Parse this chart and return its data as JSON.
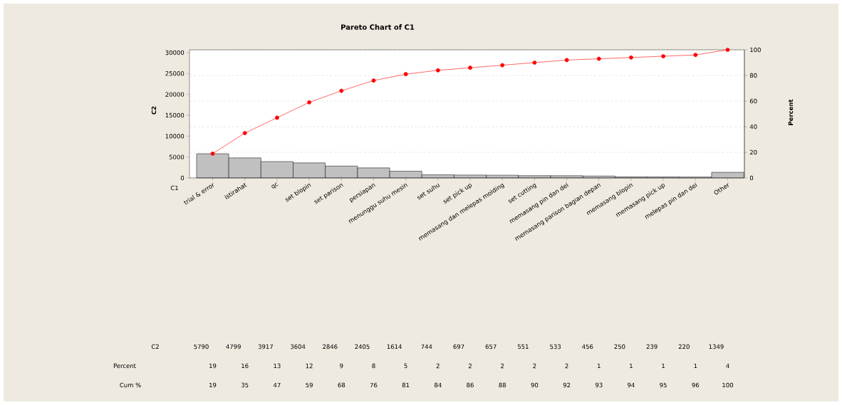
{
  "chart_data": {
    "type": "bar",
    "title": "Pareto Chart of C1",
    "xlabel": "C1",
    "ylabel": "C2",
    "y2label": "Percent",
    "categories": [
      "trial & error",
      "istirahat",
      "qc",
      "set blopin",
      "set parison",
      "persiapan",
      "menunggu suhu mesin",
      "set suhu",
      "set pick up",
      "memasang dan melepas molding",
      "set cutting",
      "memasang pin dan dei",
      "memasang parison bagian depan",
      "memasang blopin",
      "memasang pick up",
      "melepas pin dan dei",
      "Other"
    ],
    "series": [
      {
        "color": "#c0c0c0",
        "values": [
          5790,
          4799,
          3917,
          3604,
          2846,
          2405,
          1614,
          744,
          697,
          657,
          551,
          533,
          456,
          250,
          239,
          220,
          1349
        ]
      },
      {
        "type": "line",
        "axis": "y2",
        "color": "#ff0000",
        "values": [
          19,
          35,
          47,
          59,
          68,
          76,
          81,
          84,
          86,
          88,
          90,
          92,
          93,
          94,
          95,
          96,
          100
        ]
      }
    ],
    "ylim": [
      0,
      30671
    ],
    "yticks": [
      0,
      5000,
      10000,
      15000,
      20000,
      25000,
      30000
    ],
    "y2lim": [
      0,
      100
    ],
    "y2ticks": [
      0,
      20,
      40,
      60,
      80,
      100
    ],
    "grid": true,
    "marker": "circle",
    "data_labels": true,
    "annotations": [
      "C2",
      "Percent",
      "Cum %",
      "19",
      "16",
      "13",
      "12",
      "9",
      "8",
      "5",
      "2",
      "2",
      "2",
      "2",
      "2",
      "1",
      "1",
      "1",
      "1",
      "4"
    ]
  }
}
